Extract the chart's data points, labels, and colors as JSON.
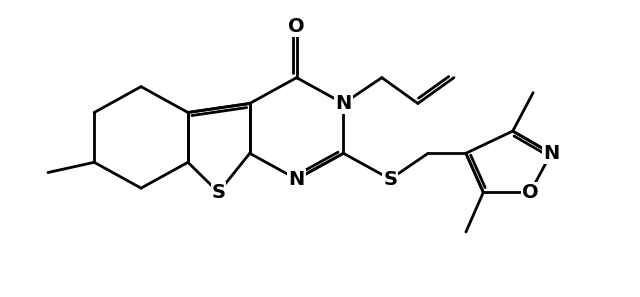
{
  "background_color": "#ffffff",
  "line_color": "#000000",
  "line_width": 2.0,
  "font_size": 14,
  "figsize": [
    6.4,
    2.97
  ],
  "dpi": 100,
  "xlim": [
    0,
    10.5
  ],
  "ylim": [
    0,
    4.9
  ]
}
